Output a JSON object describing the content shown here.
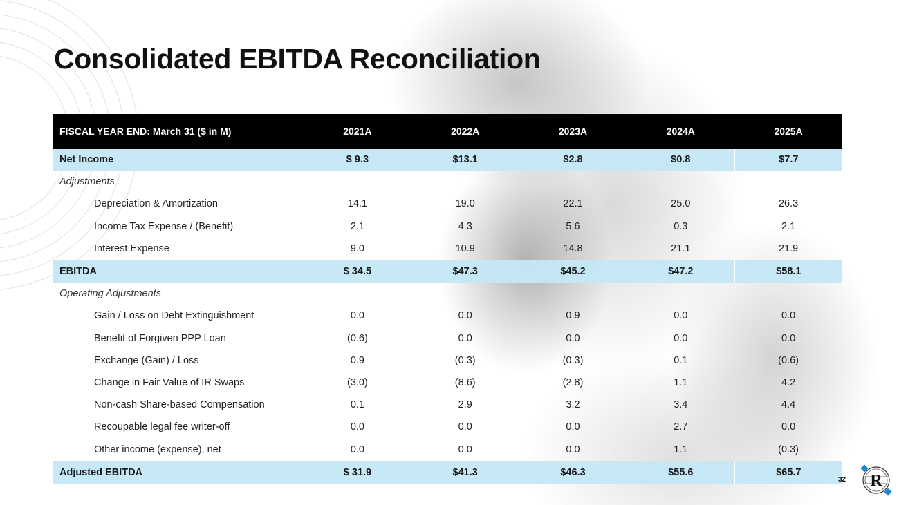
{
  "slide": {
    "title": "Consolidated EBITDA Reconciliation",
    "page_number": "32"
  },
  "logo": {
    "letter": "R",
    "accent_color": "#1e88c8"
  },
  "table": {
    "header": [
      "FISCAL YEAR END: March 31 ($ in M)",
      "2021A",
      "2022A",
      "2023A",
      "2024A",
      "2025A"
    ],
    "net_income": {
      "label": "Net Income",
      "values": [
        "$ 9.3",
        "$13.1",
        "$2.8",
        "$0.8",
        "$7.7"
      ]
    },
    "adjustments_label": "Adjustments",
    "adjustments": [
      {
        "label": "Depreciation & Amortization",
        "values": [
          "14.1",
          "19.0",
          "22.1",
          "25.0",
          "26.3"
        ]
      },
      {
        "label": "Income Tax Expense / (Benefit)",
        "values": [
          "2.1",
          "4.3",
          "5.6",
          "0.3",
          "2.1"
        ]
      },
      {
        "label": "Interest Expense",
        "values": [
          "9.0",
          "10.9",
          "14.8",
          "21.1",
          "21.9"
        ]
      }
    ],
    "ebitda": {
      "label": "EBITDA",
      "values": [
        "$ 34.5",
        "$47.3",
        "$45.2",
        "$47.2",
        "$58.1"
      ]
    },
    "operating_adjustments_label": "Operating Adjustments",
    "operating_adjustments": [
      {
        "label": "Gain / Loss on Debt Extinguishment",
        "values": [
          "0.0",
          "0.0",
          "0.9",
          "0.0",
          "0.0"
        ]
      },
      {
        "label": "Benefit of Forgiven PPP Loan",
        "values": [
          "(0.6)",
          "0.0",
          "0.0",
          "0.0",
          "0.0"
        ]
      },
      {
        "label": "Exchange (Gain) / Loss",
        "values": [
          "0.9",
          "(0.3)",
          "(0.3)",
          "0.1",
          "(0.6)"
        ]
      },
      {
        "label": "Change in Fair Value of IR Swaps",
        "values": [
          "(3.0)",
          "(8.6)",
          "(2.8)",
          "1.1",
          "4.2"
        ]
      },
      {
        "label": "Non-cash Share-based Compensation",
        "values": [
          "0.1",
          "2.9",
          "3.2",
          "3.4",
          "4.4"
        ]
      },
      {
        "label": "Recoupable legal fee writer-off",
        "values": [
          "0.0",
          "0.0",
          "0.0",
          "2.7",
          "0.0"
        ]
      },
      {
        "label": "Other income (expense), net",
        "values": [
          "0.0",
          "0.0",
          "0.0",
          "1.1",
          "(0.3)"
        ]
      }
    ],
    "adjusted_ebitda": {
      "label": "Adjusted EBITDA",
      "values": [
        "$ 31.9",
        "$41.3",
        "$46.3",
        "$55.6",
        "$65.7"
      ]
    }
  }
}
